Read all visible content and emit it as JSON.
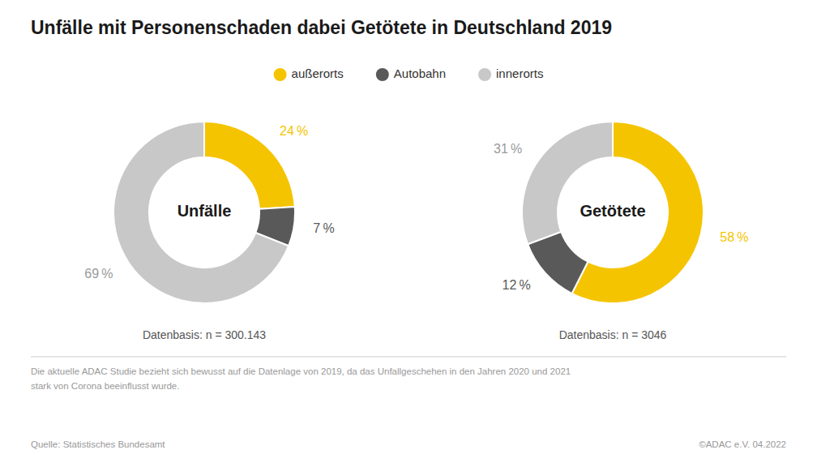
{
  "title": "Unfälle mit Personenschaden dabei Getötete in Deutschland 2019",
  "legend": "top",
  "annotations": [
    "Die aktuelle ADAC Studie bezieht sich bewusst auf die Datenlage von 2019, da das Unfallgeschehen in den Jahren 2020 und 2021\nstark von Corona beeinflusst wurde.",
    "Quelle: Statistisches Bundesamt",
    "©ADAC e.V.  04.2022"
  ],
  "chart_data": [
    {
      "type": "pie",
      "title": "Unfälle",
      "categories": [
        "außerorts",
        "Autobahn",
        "innerorts"
      ],
      "values": [
        24,
        7,
        69
      ],
      "value_labels": [
        "24 %",
        "7 %",
        "69 %"
      ],
      "colors": [
        "#F5C400",
        "#595959",
        "#c8c8c8"
      ],
      "data_labels": true,
      "annotations": [
        "Datenbasis: n = 300.143"
      ]
    },
    {
      "type": "pie",
      "title": "Getötete",
      "categories": [
        "außerorts",
        "Autobahn",
        "innerorts"
      ],
      "values": [
        58,
        12,
        31
      ],
      "value_labels": [
        "58 %",
        "12 %",
        "31 %"
      ],
      "colors": [
        "#F5C400",
        "#595959",
        "#c8c8c8"
      ],
      "data_labels": true,
      "annotations": [
        "Datenbasis: n = 3046"
      ]
    }
  ]
}
